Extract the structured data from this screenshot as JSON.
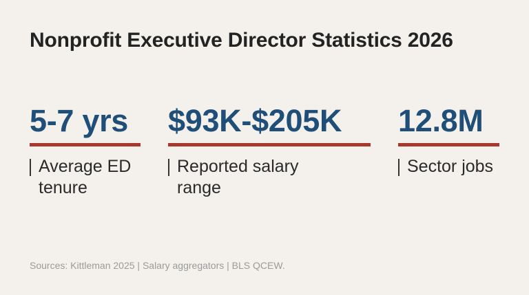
{
  "title": "Nonprofit Executive Director Statistics 2026",
  "colors": {
    "background": "#f4f1ec",
    "value": "#1f4e79",
    "underline": "#a6382d",
    "text": "#2a2a2a",
    "source": "#9a9a9a"
  },
  "stats": [
    {
      "value": "5-7 yrs",
      "label": "Average ED tenure"
    },
    {
      "value": "$93K-$205K",
      "label": "Reported salary range"
    },
    {
      "value": "12.8M",
      "label": "Sector jobs"
    }
  ],
  "sources": "Sources: Kittleman 2025 | Salary aggregators | BLS QCEW."
}
